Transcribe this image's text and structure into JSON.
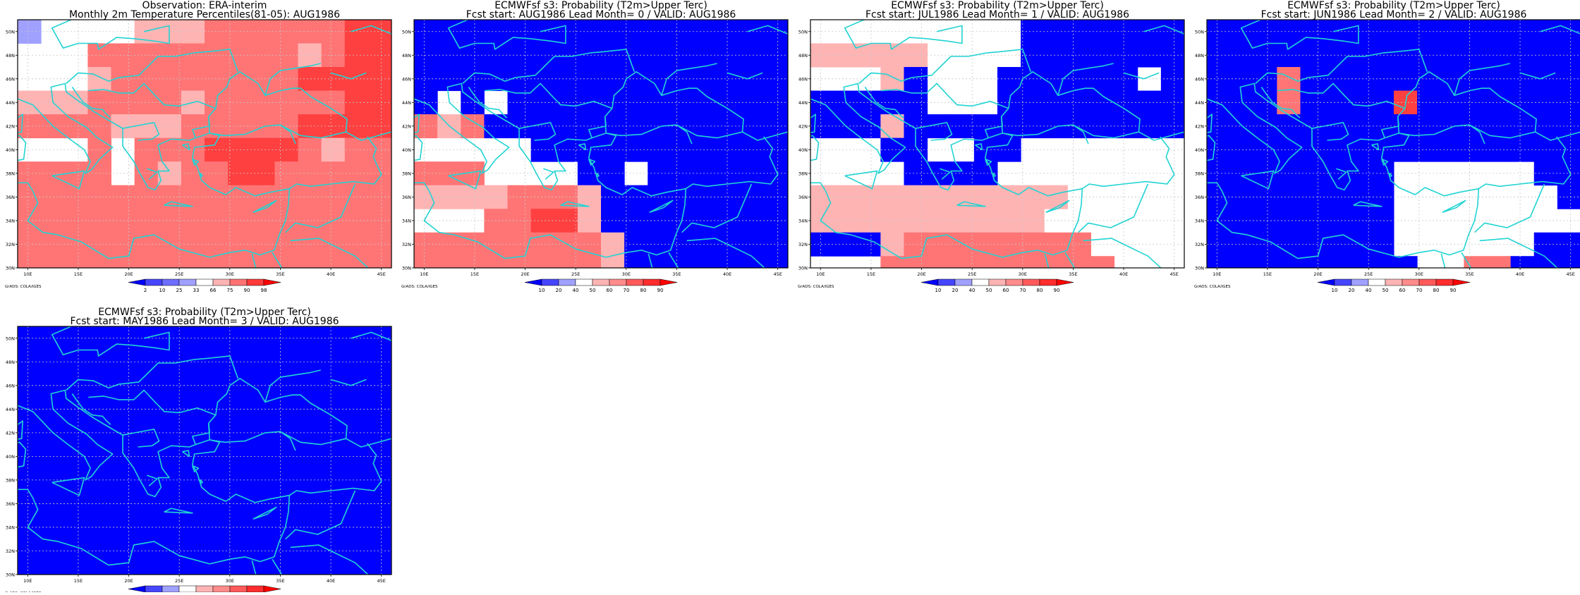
{
  "colorbars": {
    "percentile": {
      "labels": [
        "2",
        "10",
        "25",
        "33",
        "66",
        "75",
        "90",
        "98"
      ],
      "colors": [
        "#0000ff",
        "#4646ff",
        "#6e6eff",
        "#a0a0ff",
        "#ffffff",
        "#ffb4b4",
        "#ff7373",
        "#ff3a3a",
        "#ff0000"
      ]
    },
    "probability": {
      "labels": [
        "10",
        "20",
        "40",
        "50",
        "60",
        "70",
        "80",
        "90"
      ],
      "colors": [
        "#0000ff",
        "#4646ff",
        "#a0a0ff",
        "#ffffff",
        "#ffb4b4",
        "#ff8c8c",
        "#ff5a5a",
        "#ff2d2d",
        "#ff0000"
      ]
    }
  },
  "grads_credit": "GrADS: COLA/IGES",
  "lon_ticks": [
    "10E",
    "15E",
    "20E",
    "25E",
    "30E",
    "35E",
    "40E",
    "45E"
  ],
  "lat_ticks": [
    "30N",
    "32N",
    "34N",
    "36N",
    "38N",
    "40N",
    "42N",
    "44N",
    "46N",
    "48N",
    "50N"
  ],
  "grid_colors": [
    "#0000ff",
    "#4a4aff",
    "#a0a0ff",
    "#ffffff",
    "#ffb4b4",
    "#ff7575",
    "#ff4040",
    "#ff0000"
  ],
  "chart_data": [
    {
      "type": "heatmap",
      "title_line1": "Observation: ERA-interim",
      "title_line2": "Monthly 2m Temperature Percentiles(81-05): AUG1986",
      "colorbar": "percentile",
      "lon_range": [
        9,
        46
      ],
      "lat_range": [
        30,
        51
      ],
      "grid_res_deg": 2,
      "cells_grid": [
        "2333344455555566",
        "3335555555554566",
        "3334555555556666",
        "4445555455555566",
        "5555444555556666",
        "3335355566665455",
        "5555354556655555",
        "5555555555555555",
        "5555555555555555",
        "5555555555555555",
        "5555555555555555"
      ]
    },
    {
      "type": "heatmap",
      "title_line1": "ECMWFsf s3: Probability (T2m>Upper Terc)",
      "title_line2": "Fcst start: AUG1986   Lead Month= 0 / VALID: AUG1986",
      "colorbar": "probability",
      "lon_range": [
        9,
        46
      ],
      "lat_range": [
        30,
        51
      ],
      "grid_res_deg": 2,
      "cells_grid": [
        "0000000000000000",
        "0000000000000000",
        "0000000000000000",
        "0303000000000000",
        "5450000000000000",
        "3333300000000000",
        "5553333003000000",
        "4444555400000000",
        "3335566400000000",
        "5555555540000000",
        "5555555540000000"
      ]
    },
    {
      "type": "heatmap",
      "title_line1": "ECMWFsf s3: Probability (T2m>Upper Terc)",
      "title_line2": "Fcst start: JUL1986   Lead Month= 1 / VALID: AUG1986",
      "colorbar": "probability",
      "lon_range": [
        9,
        46
      ],
      "lat_range": [
        30,
        51
      ],
      "grid_res_deg": 2,
      "cells_grid": [
        "3333333330000000",
        "4444433330000000",
        "3334033300000030",
        "0000033300000000",
        "0004000000000000",
        "3330033003333333",
        "3333000033333333",
        "4444444444433333",
        "4444444444333333",
        "0004555555553333",
        "3335555555555333"
      ]
    },
    {
      "type": "heatmap",
      "title_line1": "ECMWFsf s3: Probability (T2m>Upper Terc)",
      "title_line2": "Fcst start: JUN1986   Lead Month= 2 / VALID: AUG1986",
      "colorbar": "probability",
      "lon_range": [
        9,
        46
      ],
      "lat_range": [
        30,
        51
      ],
      "grid_res_deg": 2,
      "cells_grid": [
        "0000000000000000",
        "0000000000000000",
        "0005000000000000",
        "0005000060000000",
        "0000000000000000",
        "0000000000000000",
        "0000000033333300",
        "0000000033333330",
        "0000000033333333",
        "0000000033333300",
        "0000000003355000"
      ]
    },
    {
      "type": "heatmap",
      "title_line1": "ECMWFsf s3: Probability (T2m>Upper Terc)",
      "title_line2": "Fcst start: MAY1986   Lead Month= 3 / VALID: AUG1986",
      "colorbar": "probability",
      "lon_range": [
        9,
        46
      ],
      "lat_range": [
        30,
        51
      ],
      "grid_res_deg": 2,
      "cells_grid": [
        "0000000000000000",
        "0000000000000000",
        "0000000000000000",
        "0000000000000000",
        "0000000000000000",
        "0000000000000000",
        "0000000000000000",
        "0000000000000000",
        "0000000000000000",
        "0000000000000000",
        "0000000000000000"
      ]
    }
  ]
}
